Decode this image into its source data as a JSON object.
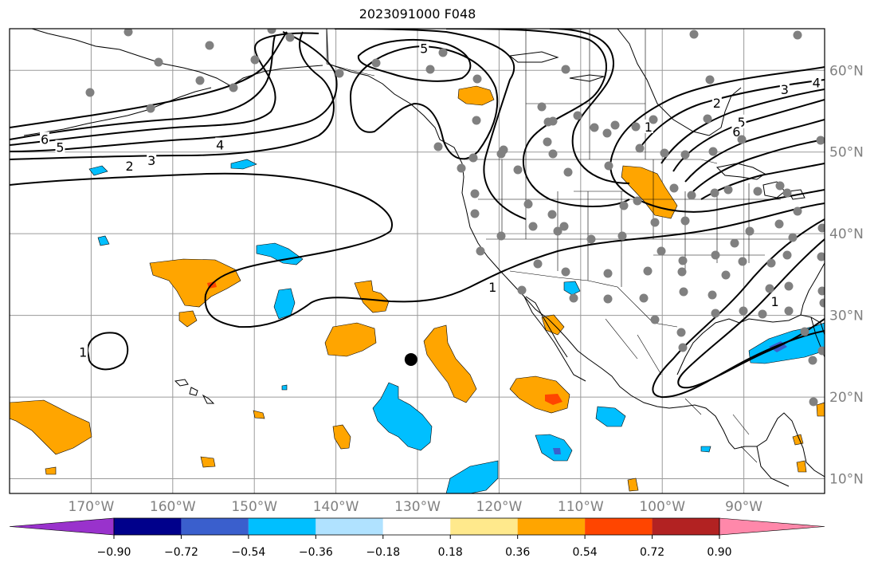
{
  "title": "2023091000 F048",
  "map": {
    "lon_labels": [
      {
        "lon": -170,
        "text": "170°W"
      },
      {
        "lon": -160,
        "text": "160°W"
      },
      {
        "lon": -150,
        "text": "150°W"
      },
      {
        "lon": -140,
        "text": "140°W"
      },
      {
        "lon": -130,
        "text": "130°W"
      },
      {
        "lon": -120,
        "text": "120°W"
      },
      {
        "lon": -110,
        "text": "110°W"
      },
      {
        "lon": -100,
        "text": "100°W"
      },
      {
        "lon": -90,
        "text": "90°W"
      }
    ],
    "lat_labels": [
      {
        "lat": 60,
        "text": "60°N"
      },
      {
        "lat": 50,
        "text": "50°N"
      },
      {
        "lat": 40,
        "text": "40°N"
      },
      {
        "lat": 30,
        "text": "30°N"
      },
      {
        "lat": 20,
        "text": "20°N"
      },
      {
        "lat": 10,
        "text": "10°N"
      }
    ],
    "contour_labels": [
      {
        "text": "6",
        "lon": -175.7,
        "lat": 51.6
      },
      {
        "text": "5",
        "lon": -173.8,
        "lat": 50.6
      },
      {
        "text": "2",
        "lon": -165.3,
        "lat": 48.3
      },
      {
        "text": "3",
        "lon": -162.6,
        "lat": 49.0
      },
      {
        "text": "4",
        "lon": -154.2,
        "lat": 50.9
      },
      {
        "text": "5",
        "lon": -129.2,
        "lat": 62.7
      },
      {
        "text": "1",
        "lon": -101.7,
        "lat": 53.1
      },
      {
        "text": "2",
        "lon": -93.3,
        "lat": 56.0
      },
      {
        "text": "3",
        "lon": -85.0,
        "lat": 57.7
      },
      {
        "text": "4",
        "lon": -81.1,
        "lat": 58.5
      },
      {
        "text": "5",
        "lon": -90.3,
        "lat": 53.7
      },
      {
        "text": "6",
        "lon": -90.9,
        "lat": 52.5
      },
      {
        "text": "1",
        "lon": -171.0,
        "lat": 25.5
      },
      {
        "text": "1",
        "lon": -120.8,
        "lat": 33.5
      },
      {
        "text": "1",
        "lon": -86.2,
        "lat": 31.7
      }
    ],
    "marker": {
      "lon": -130.8,
      "lat": 24.6
    }
  },
  "colorbar": {
    "tick_labels": [
      "−0.90",
      "−0.72",
      "−0.54",
      "−0.36",
      "−0.18",
      "0.18",
      "0.36",
      "0.54",
      "0.72",
      "0.90"
    ],
    "colors": [
      "#9932cc",
      "#00008b",
      "#3a5fcd",
      "#00bfff",
      "#b0e2ff",
      "#ffffff",
      "#ffe98c",
      "#ffa500",
      "#ff4500",
      "#b22222",
      "#ff88aa"
    ]
  }
}
